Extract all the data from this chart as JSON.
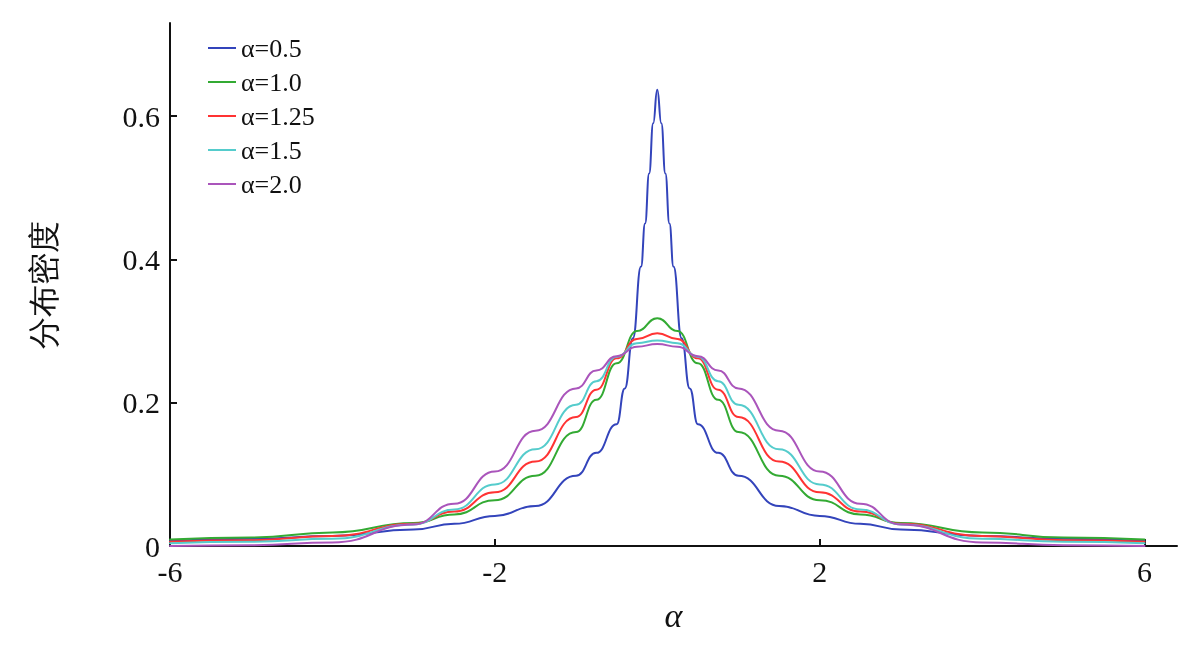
{
  "chart_data": {
    "type": "line",
    "xlabel": "α",
    "ylabel": "分布密度",
    "xlim": [
      -6,
      6.4
    ],
    "xticks": [
      -6,
      -2,
      2,
      6
    ],
    "ylim": [
      0,
      0.73
    ],
    "yticks": [
      0,
      0.2,
      0.4,
      0.6
    ],
    "grid": false,
    "legend": "top left",
    "marker": "none",
    "line_style": "solid",
    "series": [
      {
        "name": "α=0.5",
        "color": "#3344bb",
        "x": [
          -6,
          -5,
          -4,
          -3,
          -2.5,
          -2,
          -1.5,
          -1,
          -0.75,
          -0.5,
          -0.4,
          -0.3,
          -0.2,
          -0.15,
          -0.1,
          -0.05,
          0,
          0.05,
          0.1,
          0.15,
          0.2,
          0.3,
          0.4,
          0.5,
          0.75,
          1,
          1.5,
          2,
          2.5,
          3,
          4,
          5,
          6
        ],
        "values": [
          0.007,
          0.01,
          0.014,
          0.023,
          0.031,
          0.042,
          0.056,
          0.098,
          0.13,
          0.17,
          0.22,
          0.29,
          0.39,
          0.45,
          0.52,
          0.59,
          0.637,
          0.59,
          0.52,
          0.45,
          0.39,
          0.29,
          0.22,
          0.17,
          0.13,
          0.098,
          0.056,
          0.042,
          0.031,
          0.023,
          0.014,
          0.01,
          0.007
        ]
      },
      {
        "name": "α=1.0",
        "color": "#33aa33",
        "x": [
          -6,
          -5,
          -4,
          -3,
          -2.5,
          -2,
          -1.5,
          -1,
          -0.75,
          -0.5,
          -0.25,
          0,
          0.25,
          0.5,
          0.75,
          1,
          1.5,
          2,
          2.5,
          3,
          4,
          5,
          6
        ],
        "values": [
          0.009,
          0.012,
          0.019,
          0.032,
          0.044,
          0.064,
          0.098,
          0.159,
          0.204,
          0.255,
          0.3,
          0.318,
          0.3,
          0.255,
          0.204,
          0.159,
          0.098,
          0.064,
          0.044,
          0.032,
          0.019,
          0.012,
          0.009
        ]
      },
      {
        "name": "α=1.25",
        "color": "#ff3333",
        "x": [
          -6,
          -5,
          -4,
          -3,
          -2.5,
          -2,
          -1.5,
          -1,
          -0.75,
          -0.5,
          -0.25,
          0,
          0.25,
          0.5,
          0.75,
          1,
          1.5,
          2,
          2.5,
          3,
          4,
          5,
          6
        ],
        "values": [
          0.006,
          0.008,
          0.014,
          0.031,
          0.048,
          0.075,
          0.118,
          0.18,
          0.218,
          0.262,
          0.289,
          0.297,
          0.289,
          0.262,
          0.218,
          0.18,
          0.118,
          0.075,
          0.048,
          0.031,
          0.014,
          0.008,
          0.006
        ]
      },
      {
        "name": "α=1.5",
        "color": "#55cccc",
        "x": [
          -6,
          -5,
          -4,
          -3,
          -2.5,
          -2,
          -1.5,
          -1,
          -0.75,
          -0.5,
          -0.25,
          0,
          0.25,
          0.5,
          0.75,
          1,
          1.5,
          2,
          2.5,
          3,
          4,
          5,
          6
        ],
        "values": [
          0.004,
          0.006,
          0.01,
          0.03,
          0.051,
          0.086,
          0.135,
          0.197,
          0.23,
          0.264,
          0.283,
          0.287,
          0.283,
          0.264,
          0.23,
          0.197,
          0.135,
          0.086,
          0.051,
          0.03,
          0.01,
          0.006,
          0.004
        ]
      },
      {
        "name": "α=2.0",
        "color": "#aa55bb",
        "x": [
          -6,
          -5,
          -4,
          -3,
          -2.5,
          -2,
          -1.5,
          -1,
          -0.75,
          -0.5,
          -0.25,
          0,
          0.25,
          0.5,
          0.75,
          1,
          1.5,
          2,
          2.5,
          3,
          4,
          5,
          6
        ],
        "values": [
          0,
          0.001,
          0.005,
          0.03,
          0.059,
          0.104,
          0.161,
          0.22,
          0.245,
          0.265,
          0.278,
          0.282,
          0.278,
          0.265,
          0.245,
          0.22,
          0.161,
          0.104,
          0.059,
          0.03,
          0.005,
          0.001,
          0
        ]
      }
    ]
  }
}
